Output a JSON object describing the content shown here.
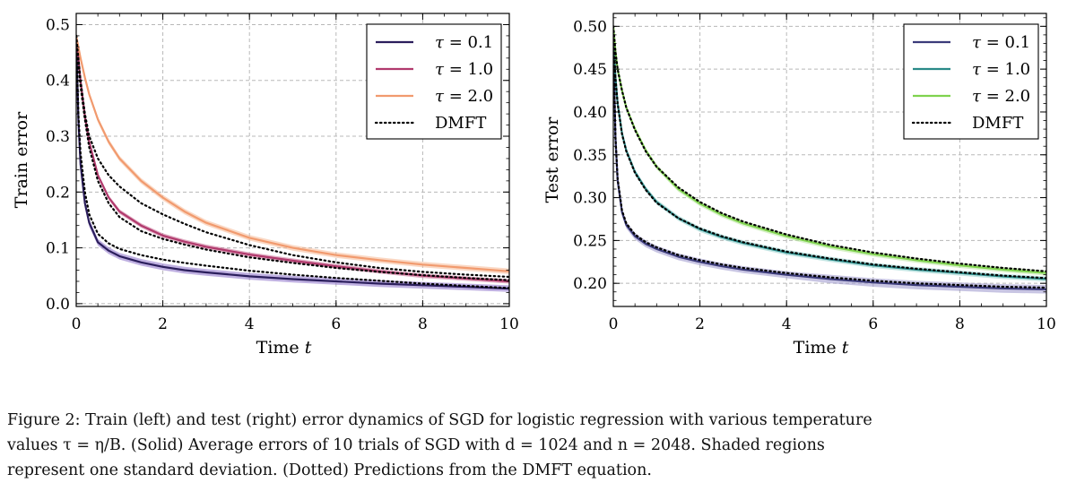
{
  "chart_data": [
    {
      "type": "line",
      "ylabel": "Train error",
      "xlabel": "Time ",
      "xlabel_var": "t",
      "xlim": [
        0,
        10
      ],
      "ylim": [
        -0.005,
        0.52
      ],
      "xticks": [
        0,
        2,
        4,
        6,
        8,
        10
      ],
      "xtick_labels": [
        "0",
        "2",
        "4",
        "6",
        "8",
        "10"
      ],
      "yticks": [
        0.0,
        0.1,
        0.2,
        0.3,
        0.4,
        0.5
      ],
      "ytick_labels": [
        "0.0",
        "0.1",
        "0.2",
        "0.3",
        "0.4",
        "0.5"
      ],
      "grid": true,
      "legend_position": "top-right",
      "x": [
        0,
        0.05,
        0.1,
        0.2,
        0.3,
        0.5,
        0.75,
        1,
        1.5,
        2,
        2.5,
        3,
        4,
        5,
        6,
        7,
        8,
        9,
        10
      ],
      "series": [
        {
          "name": "τ = 0.1",
          "legend_var": "τ",
          "legend_rest": " = 0.1",
          "color": "#2b1e5c",
          "band_color": "#8a6fc9",
          "values": [
            0.48,
            0.33,
            0.25,
            0.18,
            0.145,
            0.11,
            0.095,
            0.085,
            0.074,
            0.066,
            0.06,
            0.056,
            0.049,
            0.044,
            0.04,
            0.036,
            0.033,
            0.03,
            0.027
          ],
          "std": [
            0.01,
            0.01,
            0.01,
            0.008,
            0.007,
            0.006,
            0.006,
            0.006,
            0.006,
            0.006,
            0.006,
            0.006,
            0.006,
            0.006,
            0.006,
            0.006,
            0.006,
            0.006,
            0.006
          ]
        },
        {
          "name": "τ = 1.0",
          "legend_var": "τ",
          "legend_rest": " = 1.0",
          "color": "#b13a6d",
          "band_color": "#c86a92",
          "values": [
            0.48,
            0.44,
            0.4,
            0.335,
            0.29,
            0.23,
            0.19,
            0.165,
            0.14,
            0.122,
            0.111,
            0.102,
            0.088,
            0.077,
            0.067,
            0.058,
            0.05,
            0.045,
            0.04
          ],
          "std": [
            0.004,
            0.004,
            0.004,
            0.004,
            0.004,
            0.004,
            0.004,
            0.004,
            0.004,
            0.004,
            0.004,
            0.004,
            0.004,
            0.004,
            0.004,
            0.004,
            0.004,
            0.004,
            0.004
          ]
        },
        {
          "name": "τ = 2.0",
          "legend_var": "τ",
          "legend_rest": " = 2.0",
          "color": "#f19a6e",
          "band_color": "#f5b894",
          "values": [
            0.48,
            0.46,
            0.44,
            0.405,
            0.375,
            0.33,
            0.29,
            0.26,
            0.22,
            0.19,
            0.165,
            0.145,
            0.118,
            0.1,
            0.087,
            0.078,
            0.07,
            0.064,
            0.058
          ],
          "std": [
            0.005,
            0.005,
            0.005,
            0.005,
            0.005,
            0.005,
            0.005,
            0.005,
            0.005,
            0.005,
            0.005,
            0.005,
            0.005,
            0.005,
            0.005,
            0.005,
            0.005,
            0.005,
            0.005
          ]
        },
        {
          "name": "DMFT",
          "color": "#000000",
          "dotted": true,
          "values": [
            0.48,
            0.44,
            0.4,
            0.34,
            0.3,
            0.26,
            0.23,
            0.21,
            0.18,
            0.16,
            0.143,
            0.128,
            0.105,
            0.087,
            0.074,
            0.064,
            0.057,
            0.052,
            0.048
          ]
        },
        {
          "name": "DMFT",
          "color": "#000000",
          "dotted": true,
          "values": [
            0.48,
            0.43,
            0.39,
            0.33,
            0.28,
            0.22,
            0.18,
            0.155,
            0.13,
            0.116,
            0.106,
            0.097,
            0.083,
            0.073,
            0.064,
            0.057,
            0.051,
            0.046,
            0.042
          ]
        },
        {
          "name": "DMFT",
          "color": "#000000",
          "dotted": true,
          "values": [
            0.48,
            0.34,
            0.27,
            0.2,
            0.16,
            0.125,
            0.108,
            0.098,
            0.087,
            0.079,
            0.073,
            0.068,
            0.059,
            0.052,
            0.046,
            0.041,
            0.036,
            0.032,
            0.028
          ]
        }
      ]
    },
    {
      "type": "line",
      "ylabel": "Test error",
      "xlabel": "Time ",
      "xlabel_var": "t",
      "xlim": [
        0,
        10
      ],
      "ylim": [
        0.173,
        0.515
      ],
      "xticks": [
        0,
        2,
        4,
        6,
        8,
        10
      ],
      "xtick_labels": [
        "0",
        "2",
        "4",
        "6",
        "8",
        "10"
      ],
      "yticks": [
        0.2,
        0.25,
        0.3,
        0.35,
        0.4,
        0.45,
        0.5
      ],
      "ytick_labels": [
        "0.20",
        "0.25",
        "0.30",
        "0.35",
        "0.40",
        "0.45",
        "0.50"
      ],
      "grid": true,
      "legend_position": "top-right",
      "x": [
        0,
        0.05,
        0.1,
        0.2,
        0.3,
        0.5,
        0.75,
        1,
        1.5,
        2,
        2.5,
        3,
        4,
        5,
        6,
        7,
        8,
        9,
        10
      ],
      "series": [
        {
          "name": "τ = 0.1",
          "legend_var": "τ",
          "legend_rest": " = 0.1",
          "color": "#3b3b7a",
          "band_color": "#9a96cc",
          "values": [
            0.48,
            0.37,
            0.32,
            0.283,
            0.268,
            0.255,
            0.246,
            0.24,
            0.231,
            0.225,
            0.22,
            0.216,
            0.21,
            0.205,
            0.201,
            0.198,
            0.196,
            0.194,
            0.193
          ],
          "std": [
            0.004,
            0.004,
            0.004,
            0.004,
            0.004,
            0.004,
            0.004,
            0.004,
            0.004,
            0.004,
            0.004,
            0.004,
            0.004,
            0.005,
            0.005,
            0.005,
            0.005,
            0.005,
            0.005
          ]
        },
        {
          "name": "τ = 1.0",
          "legend_var": "τ",
          "legend_rest": " = 1.0",
          "color": "#2a8a88",
          "band_color": "#8fd0cc",
          "values": [
            0.49,
            0.44,
            0.41,
            0.375,
            0.355,
            0.33,
            0.31,
            0.295,
            0.276,
            0.263,
            0.254,
            0.247,
            0.236,
            0.228,
            0.221,
            0.216,
            0.212,
            0.208,
            0.205
          ],
          "std": [
            0.003,
            0.003,
            0.003,
            0.003,
            0.003,
            0.003,
            0.003,
            0.003,
            0.003,
            0.003,
            0.003,
            0.003,
            0.003,
            0.003,
            0.003,
            0.003,
            0.003,
            0.003,
            0.003
          ]
        },
        {
          "name": "τ = 2.0",
          "legend_var": "τ",
          "legend_rest": " = 2.0",
          "color": "#7fd34e",
          "band_color": "#b6e69a",
          "values": [
            0.5,
            0.47,
            0.45,
            0.425,
            0.405,
            0.38,
            0.355,
            0.336,
            0.31,
            0.293,
            0.28,
            0.27,
            0.255,
            0.243,
            0.234,
            0.227,
            0.221,
            0.216,
            0.212
          ],
          "std": [
            0.003,
            0.003,
            0.003,
            0.003,
            0.003,
            0.003,
            0.003,
            0.003,
            0.003,
            0.003,
            0.003,
            0.003,
            0.003,
            0.003,
            0.003,
            0.003,
            0.003,
            0.003,
            0.003
          ]
        },
        {
          "name": "DMFT",
          "color": "#000000",
          "dotted": true,
          "values": [
            0.5,
            0.47,
            0.45,
            0.425,
            0.405,
            0.379,
            0.354,
            0.336,
            0.312,
            0.295,
            0.282,
            0.272,
            0.257,
            0.245,
            0.236,
            0.229,
            0.223,
            0.218,
            0.214
          ]
        },
        {
          "name": "DMFT",
          "color": "#000000",
          "dotted": true,
          "values": [
            0.49,
            0.44,
            0.41,
            0.374,
            0.354,
            0.329,
            0.309,
            0.294,
            0.276,
            0.264,
            0.255,
            0.248,
            0.237,
            0.229,
            0.222,
            0.217,
            0.213,
            0.209,
            0.206
          ]
        },
        {
          "name": "DMFT",
          "color": "#000000",
          "dotted": true,
          "values": [
            0.48,
            0.37,
            0.322,
            0.285,
            0.27,
            0.257,
            0.248,
            0.242,
            0.233,
            0.227,
            0.222,
            0.218,
            0.212,
            0.207,
            0.203,
            0.2,
            0.198,
            0.196,
            0.195
          ]
        }
      ]
    }
  ],
  "caption": {
    "line1": "Figure 2: Train (left) and test (right) error dynamics of SGD for logistic regression with various temperature",
    "line2": "values τ = η/B.  (Solid) Average errors of 10 trials of SGD with d = 1024 and n = 2048.  Shaded regions",
    "line3": "represent one standard deviation. (Dotted) Predictions from the DMFT equation."
  }
}
